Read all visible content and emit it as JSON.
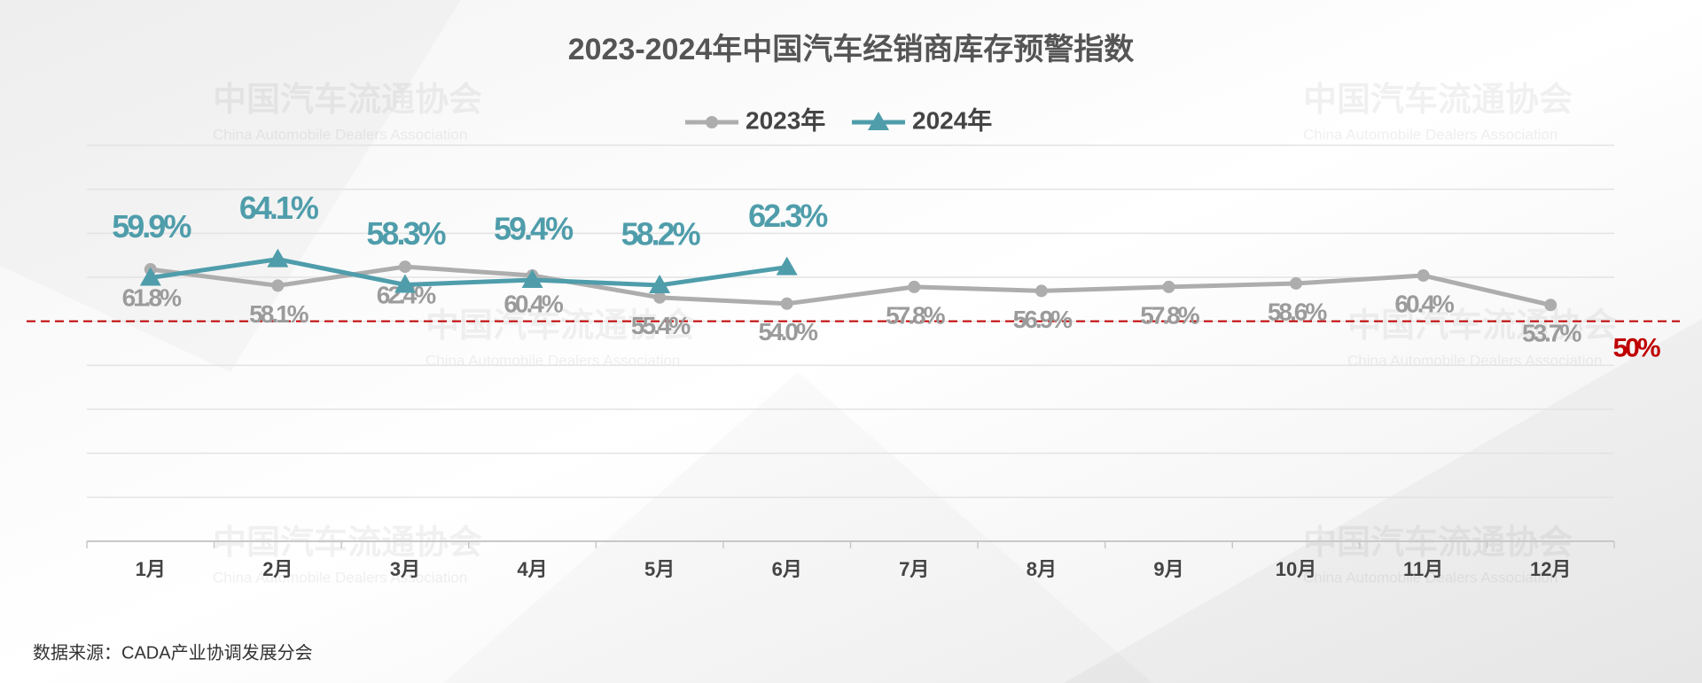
{
  "chart_data": {
    "type": "line",
    "title": "2023-2024年中国汽车经销商库存预警指数",
    "categories": [
      "1月",
      "2月",
      "3月",
      "4月",
      "5月",
      "6月",
      "7月",
      "8月",
      "9月",
      "10月",
      "11月",
      "12月"
    ],
    "series": [
      {
        "name": "2023年",
        "color": "#adadad",
        "marker": "circle",
        "label_color": "#9b9b9b",
        "values": [
          61.8,
          58.1,
          62.4,
          60.4,
          55.4,
          54.0,
          57.8,
          56.9,
          57.8,
          58.6,
          60.4,
          53.7
        ],
        "value_labels": [
          "61.8%",
          "58.1%",
          "62.4%",
          "60.4%",
          "55.4%",
          "54.0%",
          "57.8%",
          "56.9%",
          "57.8%",
          "58.6%",
          "60.4%",
          "53.7%"
        ]
      },
      {
        "name": "2024年",
        "color": "#4f9dab",
        "marker": "triangle",
        "label_color": "#4f9dab",
        "values": [
          59.9,
          64.1,
          58.3,
          59.4,
          58.2,
          62.3,
          null,
          null,
          null,
          null,
          null,
          null
        ],
        "value_labels": [
          "59.9%",
          "64.1%",
          "58.3%",
          "59.4%",
          "58.2%",
          "62.3%",
          null,
          null,
          null,
          null,
          null,
          null
        ]
      }
    ],
    "ylim": [
      0,
      90
    ],
    "yticks": [
      0,
      10,
      20,
      30,
      40,
      50,
      60,
      70,
      80,
      90
    ],
    "grid": true,
    "legend": "top",
    "reference_line": {
      "value": 50,
      "label": "50%",
      "color": "#c00000"
    },
    "watermark": {
      "cn": "中国汽车流通协会",
      "en": "China Automobile Dealers Association"
    },
    "source": "数据来源：CADA产业协调发展分会"
  }
}
